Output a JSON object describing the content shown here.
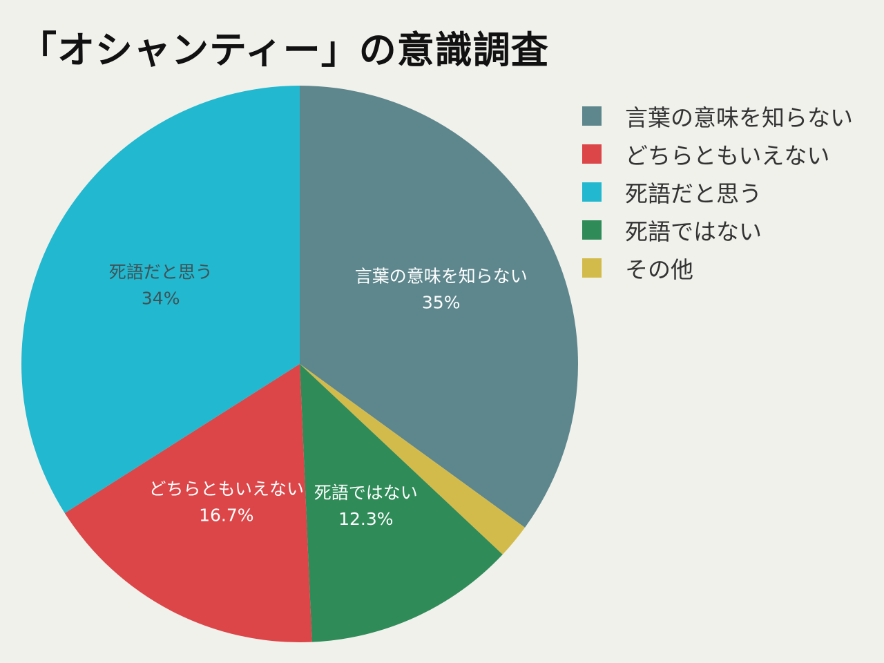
{
  "chart_data": {
    "type": "pie",
    "title": "「オシャンティー」の意識調査",
    "start_angle_deg": 0,
    "direction": "clockwise",
    "legend_position": "right",
    "slices": [
      {
        "label": "言葉の意味を知らない",
        "value": 35,
        "value_label": "35%",
        "color": "#5e878d",
        "text_color": "#ffffff"
      },
      {
        "label": "その他",
        "value": 2,
        "value_label": "",
        "color": "#d3bb4b",
        "text_color": "#ffffff"
      },
      {
        "label": "死語ではない",
        "value": 12.3,
        "value_label": "12.3%",
        "color": "#2f8b58",
        "text_color": "#ffffff"
      },
      {
        "label": "どちらともいえない",
        "value": 16.7,
        "value_label": "16.7%",
        "color": "#dc4648",
        "text_color": "#ffffff"
      },
      {
        "label": "死語だと思う",
        "value": 34,
        "value_label": "34%",
        "color": "#22b8cf",
        "text_color": "#3f5256"
      }
    ],
    "legend": [
      {
        "label": "言葉の意味を知らない",
        "color": "#5e878d"
      },
      {
        "label": "どちらともいえない",
        "color": "#dc4648"
      },
      {
        "label": "死語だと思う",
        "color": "#22b8cf"
      },
      {
        "label": "死語ではない",
        "color": "#2f8b58"
      },
      {
        "label": "その他",
        "color": "#d3bb4b"
      }
    ]
  }
}
